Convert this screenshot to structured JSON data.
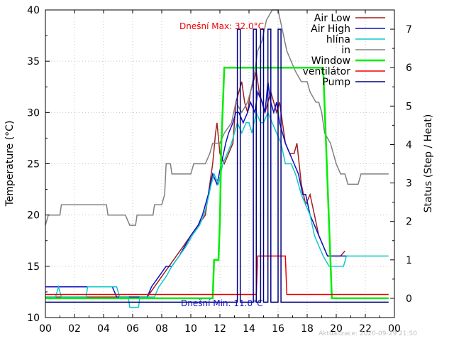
{
  "chart_data": {
    "type": "line",
    "ylabel": "Temperature (°C)",
    "y2label": "Status (Step / Heat)",
    "xlim": [
      0,
      24
    ],
    "ylim": [
      10,
      40
    ],
    "y2lim": [
      -0.5,
      7.5
    ],
    "x_ticks": [
      "00",
      "02",
      "04",
      "06",
      "08",
      "10",
      "12",
      "14",
      "16",
      "18",
      "20",
      "22",
      "00"
    ],
    "y_ticks": [
      10,
      15,
      20,
      25,
      30,
      35,
      40
    ],
    "y2_ticks": [
      0,
      1,
      2,
      3,
      4,
      5,
      6,
      7
    ],
    "grid": true,
    "legend_position": "top-right",
    "annotations": {
      "max": "Dnešní Max: 32.0°C",
      "min": "Dnešní Min: 11.0°C",
      "updated": "Aktualizace: 2020-09-29 21:50"
    },
    "series": [
      {
        "name": "Air Low",
        "axis": "y",
        "color": "#a02020",
        "points": [
          [
            0,
            12
          ],
          [
            2.4,
            12
          ],
          [
            2.5,
            12
          ],
          [
            4.5,
            12
          ],
          [
            7,
            12
          ],
          [
            7.5,
            13
          ],
          [
            8,
            14
          ],
          [
            8.5,
            15
          ],
          [
            9,
            16
          ],
          [
            9.5,
            17
          ],
          [
            10,
            18
          ],
          [
            10.5,
            19
          ],
          [
            11,
            20
          ],
          [
            11.3,
            23
          ],
          [
            11.5,
            25
          ],
          [
            11.7,
            28
          ],
          [
            11.8,
            29
          ],
          [
            12,
            26
          ],
          [
            12.3,
            25
          ],
          [
            12.6,
            26
          ],
          [
            12.9,
            27
          ],
          [
            13.1,
            31
          ],
          [
            13.3,
            32
          ],
          [
            13.5,
            33
          ],
          [
            13.7,
            31
          ],
          [
            13.9,
            30
          ],
          [
            14.1,
            32
          ],
          [
            14.3,
            33
          ],
          [
            14.5,
            34
          ],
          [
            14.7,
            32
          ],
          [
            14.9,
            31
          ],
          [
            15.1,
            30
          ],
          [
            15.3,
            31
          ],
          [
            15.5,
            32
          ],
          [
            15.7,
            31
          ],
          [
            15.9,
            30
          ],
          [
            16.1,
            31
          ],
          [
            16.3,
            29
          ],
          [
            16.5,
            27
          ],
          [
            16.8,
            26
          ],
          [
            17.1,
            26
          ],
          [
            17.3,
            27
          ],
          [
            17.6,
            23
          ],
          [
            17.9,
            21
          ],
          [
            18.2,
            22
          ],
          [
            18.5,
            20
          ],
          [
            18.8,
            18
          ],
          [
            19.1,
            17
          ],
          [
            19.4,
            16
          ],
          [
            19.8,
            16
          ],
          [
            20.3,
            16
          ],
          [
            20.6,
            16.5
          ]
        ]
      },
      {
        "name": "Air High",
        "axis": "y",
        "color": "#1010c0",
        "points": [
          [
            0,
            13
          ],
          [
            2.6,
            13
          ],
          [
            4.6,
            13
          ],
          [
            4.9,
            12
          ],
          [
            7,
            12
          ],
          [
            7.3,
            13
          ],
          [
            7.8,
            14
          ],
          [
            8.3,
            15
          ],
          [
            8.7,
            15
          ],
          [
            9.2,
            16
          ],
          [
            9.6,
            17
          ],
          [
            10,
            18
          ],
          [
            10.5,
            19
          ],
          [
            10.8,
            20
          ],
          [
            11.2,
            22
          ],
          [
            11.5,
            24
          ],
          [
            11.8,
            23
          ],
          [
            12.1,
            25
          ],
          [
            12.4,
            27
          ],
          [
            12.6,
            28
          ],
          [
            12.9,
            29
          ],
          [
            13.1,
            30
          ],
          [
            13.3,
            30
          ],
          [
            13.6,
            29
          ],
          [
            13.9,
            30
          ],
          [
            14.1,
            31
          ],
          [
            14.4,
            30
          ],
          [
            14.6,
            32
          ],
          [
            14.9,
            31
          ],
          [
            15.1,
            30
          ],
          [
            15.3,
            33
          ],
          [
            15.5,
            31
          ],
          [
            15.7,
            30
          ],
          [
            15.9,
            31
          ],
          [
            16.1,
            29
          ],
          [
            16.3,
            28
          ],
          [
            16.5,
            27
          ],
          [
            16.8,
            26
          ],
          [
            17.1,
            25
          ],
          [
            17.4,
            24
          ],
          [
            17.7,
            22
          ],
          [
            17.9,
            22
          ],
          [
            18.2,
            20
          ],
          [
            18.5,
            19
          ],
          [
            18.8,
            18
          ],
          [
            19.1,
            17
          ],
          [
            19.4,
            16
          ],
          [
            20.8,
            16
          ]
        ]
      },
      {
        "name": "hlína",
        "axis": "y",
        "color": "#10c8c8",
        "points": [
          [
            0,
            12
          ],
          [
            0.7,
            12
          ],
          [
            0.9,
            13
          ],
          [
            1.1,
            12
          ],
          [
            2.8,
            12
          ],
          [
            2.9,
            13
          ],
          [
            4.9,
            13
          ],
          [
            5.1,
            12
          ],
          [
            5.7,
            12
          ],
          [
            5.8,
            11
          ],
          [
            6.4,
            11
          ],
          [
            6.5,
            12
          ],
          [
            7.5,
            12
          ],
          [
            7.8,
            13
          ],
          [
            8.3,
            14
          ],
          [
            8.7,
            15
          ],
          [
            9.2,
            16
          ],
          [
            9.7,
            17
          ],
          [
            10.1,
            18
          ],
          [
            10.6,
            19
          ],
          [
            10.9,
            20
          ],
          [
            11.1,
            21
          ],
          [
            11.4,
            23
          ],
          [
            11.6,
            24
          ],
          [
            11.9,
            23
          ],
          [
            12.2,
            25
          ],
          [
            12.5,
            26
          ],
          [
            12.8,
            27
          ],
          [
            13.0,
            28
          ],
          [
            13.2,
            29
          ],
          [
            13.5,
            28
          ],
          [
            13.8,
            29
          ],
          [
            14.0,
            29
          ],
          [
            14.2,
            28
          ],
          [
            14.5,
            30
          ],
          [
            14.8,
            29
          ],
          [
            15.0,
            29
          ],
          [
            15.3,
            30
          ],
          [
            15.6,
            29
          ],
          [
            15.9,
            28
          ],
          [
            16.2,
            27
          ],
          [
            16.5,
            25
          ],
          [
            16.9,
            25
          ],
          [
            17.2,
            24
          ],
          [
            17.6,
            22
          ],
          [
            17.9,
            21
          ],
          [
            18.2,
            20
          ],
          [
            18.5,
            18
          ],
          [
            18.8,
            17
          ],
          [
            19.1,
            16
          ],
          [
            19.5,
            15
          ],
          [
            20.5,
            15
          ],
          [
            20.7,
            16
          ],
          [
            23.6,
            16
          ]
        ]
      },
      {
        "name": "in",
        "axis": "y",
        "color": "#808080",
        "points": [
          [
            0,
            19
          ],
          [
            0.2,
            20
          ],
          [
            1,
            20
          ],
          [
            1.1,
            21
          ],
          [
            4.2,
            21
          ],
          [
            4.3,
            20
          ],
          [
            5.5,
            20
          ],
          [
            5.8,
            19
          ],
          [
            6.2,
            19
          ],
          [
            6.3,
            20
          ],
          [
            7.4,
            20
          ],
          [
            7.5,
            21
          ],
          [
            8,
            21
          ],
          [
            8.2,
            22
          ],
          [
            8.3,
            25
          ],
          [
            8.6,
            25
          ],
          [
            8.7,
            24
          ],
          [
            10,
            24
          ],
          [
            10.2,
            25
          ],
          [
            11,
            25
          ],
          [
            11.3,
            26
          ],
          [
            11.5,
            27
          ],
          [
            12,
            27
          ],
          [
            12.3,
            28
          ],
          [
            12.8,
            29
          ],
          [
            13.1,
            31
          ],
          [
            13.5,
            30
          ],
          [
            13.9,
            31
          ],
          [
            14.1,
            32
          ],
          [
            14.4,
            34
          ],
          [
            14.6,
            36
          ],
          [
            14.9,
            37
          ],
          [
            15.2,
            39
          ],
          [
            15.6,
            40
          ],
          [
            16,
            40
          ],
          [
            16.3,
            38
          ],
          [
            16.6,
            36
          ],
          [
            16.9,
            35
          ],
          [
            17.2,
            34
          ],
          [
            17.6,
            33
          ],
          [
            18,
            33
          ],
          [
            18.2,
            32
          ],
          [
            18.6,
            31
          ],
          [
            18.8,
            31
          ],
          [
            19,
            30
          ],
          [
            19.2,
            28
          ],
          [
            19.6,
            27
          ],
          [
            19.8,
            26
          ],
          [
            20.0,
            25
          ],
          [
            20.3,
            24
          ],
          [
            20.6,
            24
          ],
          [
            20.8,
            23
          ],
          [
            21.5,
            23
          ],
          [
            21.7,
            24
          ],
          [
            23.6,
            24
          ]
        ]
      },
      {
        "name": "Window",
        "axis": "y2",
        "color": "#00ee00",
        "points": [
          [
            0,
            0
          ],
          [
            11.5,
            0
          ],
          [
            11.6,
            1
          ],
          [
            11.9,
            1
          ],
          [
            12.0,
            2
          ],
          [
            12.1,
            4
          ],
          [
            12.2,
            5
          ],
          [
            12.3,
            6
          ],
          [
            19.1,
            6
          ],
          [
            19.2,
            5
          ],
          [
            19.4,
            3
          ],
          [
            19.6,
            1
          ],
          [
            19.7,
            0
          ],
          [
            23.6,
            0
          ]
        ]
      },
      {
        "name": "ventilátor",
        "axis": "y2",
        "color": "#ee0000",
        "points": [
          [
            0,
            0.1
          ],
          [
            14.5,
            0.1
          ],
          [
            14.6,
            1.1
          ],
          [
            16.5,
            1.1
          ],
          [
            16.6,
            0.1
          ],
          [
            23.6,
            0.1
          ]
        ]
      },
      {
        "name": "Pump",
        "axis": "y2",
        "color": "#000080",
        "points": [
          [
            0,
            -0.1
          ],
          [
            13.2,
            -0.1
          ],
          [
            13.2,
            7
          ],
          [
            13.4,
            7
          ],
          [
            13.4,
            -0.1
          ],
          [
            14.3,
            -0.1
          ],
          [
            14.3,
            7
          ],
          [
            14.5,
            7
          ],
          [
            14.5,
            -0.1
          ],
          [
            14.8,
            -0.1
          ],
          [
            14.8,
            7
          ],
          [
            15.0,
            7
          ],
          [
            15.0,
            -0.1
          ],
          [
            15.3,
            -0.1
          ],
          [
            15.3,
            7
          ],
          [
            15.5,
            7
          ],
          [
            15.5,
            -0.1
          ],
          [
            16.0,
            -0.1
          ],
          [
            16.0,
            7
          ],
          [
            16.2,
            7
          ],
          [
            16.2,
            -0.1
          ],
          [
            23.6,
            -0.1
          ]
        ]
      }
    ]
  }
}
